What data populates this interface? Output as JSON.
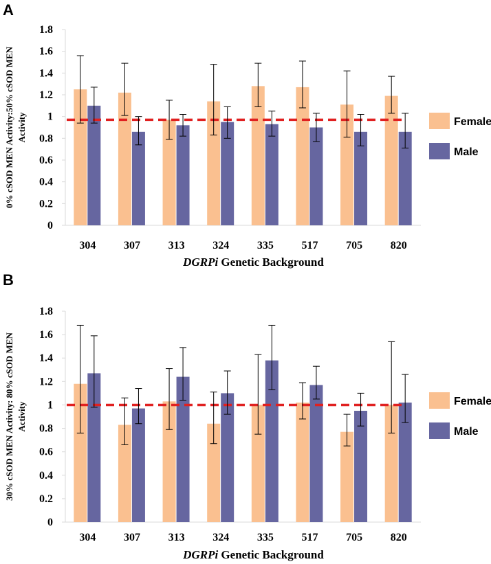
{
  "colors": {
    "female": "#FAC090",
    "male": "#6666A0",
    "reference": "#E02020"
  },
  "chart_data": [
    {
      "panel": "A",
      "type": "bar",
      "ylabel_line1": "0% cSOD MEN Activity:50% cSOD MEN",
      "ylabel_line2": "Activity",
      "xlabel_italic": "DGRPi",
      "xlabel_rest": " Genetic Background",
      "ylim": [
        0,
        1.8
      ],
      "yticks": [
        "0",
        "0.2",
        "0.4",
        "0.6",
        "0.8",
        "1",
        "1.2",
        "1.4",
        "1.6",
        "1.8"
      ],
      "reference_line": 0.97,
      "categories": [
        "304",
        "307",
        "313",
        "324",
        "335",
        "517",
        "705",
        "820"
      ],
      "series": [
        {
          "name": "Female",
          "values": [
            1.25,
            1.22,
            0.97,
            1.14,
            1.28,
            1.27,
            1.11,
            1.19
          ],
          "err_low": [
            0.94,
            1.01,
            0.79,
            0.83,
            1.09,
            1.08,
            0.81,
            1.03
          ],
          "err_high": [
            1.56,
            1.49,
            1.15,
            1.48,
            1.49,
            1.51,
            1.42,
            1.37
          ]
        },
        {
          "name": "Male",
          "values": [
            1.1,
            0.86,
            0.92,
            0.95,
            0.93,
            0.9,
            0.86,
            0.86
          ],
          "err_low": [
            0.94,
            0.74,
            0.82,
            0.8,
            0.82,
            0.77,
            0.73,
            0.71
          ],
          "err_high": [
            1.27,
            1.0,
            1.02,
            1.09,
            1.05,
            1.03,
            1.02,
            1.03
          ]
        }
      ]
    },
    {
      "panel": "B",
      "type": "bar",
      "ylabel_line1": "30% cSOD MEN Activity: 80% cSOD MEN",
      "ylabel_line2": "Activity",
      "xlabel_italic": "DGRPi",
      "xlabel_rest": " Genetic Background",
      "ylim": [
        0,
        1.8
      ],
      "yticks": [
        "0",
        "0.2",
        "0.4",
        "0.6",
        "0.8",
        "1",
        "1.2",
        "1.4",
        "1.6",
        "1.8"
      ],
      "reference_line": 1.0,
      "categories": [
        "304",
        "307",
        "313",
        "324",
        "335",
        "517",
        "705",
        "820"
      ],
      "series": [
        {
          "name": "Female",
          "values": [
            1.18,
            0.83,
            1.03,
            0.84,
            1.0,
            1.02,
            0.77,
            1.0
          ],
          "err_low": [
            0.76,
            0.66,
            0.79,
            0.67,
            0.75,
            0.88,
            0.65,
            0.76
          ],
          "err_high": [
            1.68,
            1.06,
            1.31,
            1.11,
            1.43,
            1.19,
            0.92,
            1.54
          ]
        },
        {
          "name": "Male",
          "values": [
            1.27,
            0.97,
            1.24,
            1.1,
            1.38,
            1.17,
            0.95,
            1.02
          ],
          "err_low": [
            0.98,
            0.84,
            1.04,
            0.92,
            1.13,
            1.05,
            0.82,
            0.85
          ],
          "err_high": [
            1.59,
            1.14,
            1.49,
            1.29,
            1.68,
            1.33,
            1.1,
            1.26
          ]
        }
      ]
    }
  ]
}
